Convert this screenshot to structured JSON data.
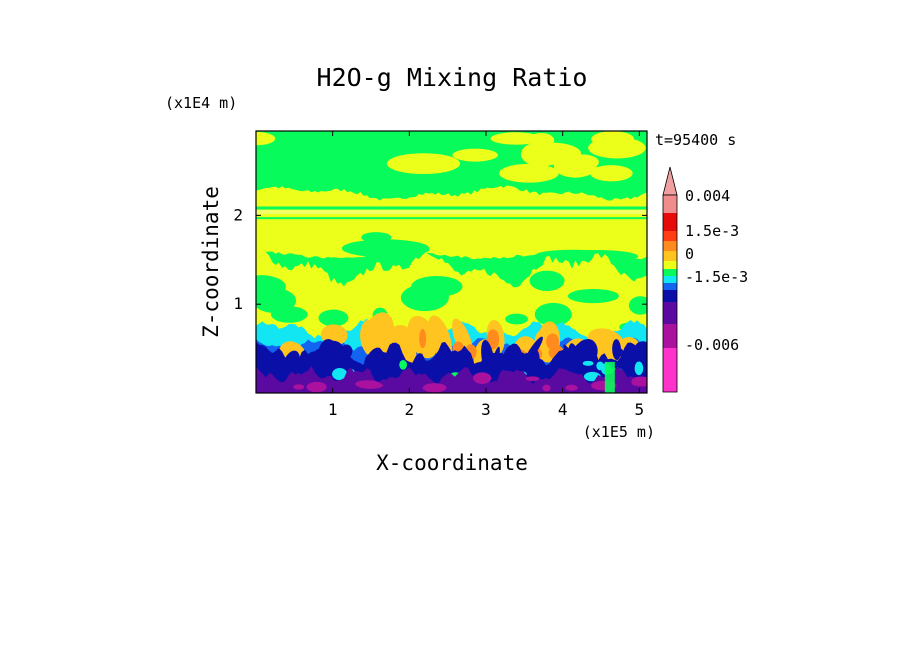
{
  "chart_data": {
    "type": "heatmap",
    "title": "H2O-g Mixing Ratio",
    "xlabel": "X-coordinate",
    "ylabel": "Z-coordinate",
    "x_unit": "(x1E5 m)",
    "y_unit": "(x1E4 m)",
    "time_label": "t=95400 s",
    "xlim": [
      0,
      5.1
    ],
    "ylim": [
      0,
      2.95
    ],
    "x_ticks": [
      1,
      2,
      3,
      4,
      5
    ],
    "y_ticks": [
      1,
      2
    ],
    "x_tick_labels": [
      "1",
      "2",
      "3",
      "4",
      "5"
    ],
    "y_tick_labels": [
      "1",
      "2"
    ],
    "colorbar": {
      "colors": [
        "#ff33cc",
        "#aa119f",
        "#5a0aa0",
        "#0a0fa8",
        "#1464f2",
        "#11e6f2",
        "#07fb5a",
        "#ebff1a",
        "#ffc41f",
        "#ff8a1e",
        "#ff3d12",
        "#e60a0a",
        "#f08c8c",
        "#f0a0a0"
      ],
      "labels": [
        "0.004",
        "1.5e-3",
        "0",
        "-1.5e-3",
        "-0.006"
      ],
      "label_values": [
        0.004,
        0.0015,
        0,
        -0.0015,
        -0.006
      ]
    },
    "background_color": "#07fb5a",
    "layers": [
      {
        "name": "upper-band",
        "z_range": [
          1.55,
          2.3
        ],
        "color": "#ebff1a"
      },
      {
        "name": "mid-layer",
        "z_range": [
          0.55,
          1.55
        ],
        "color": "#ebff1a"
      },
      {
        "name": "cyan-layer",
        "z_range": [
          0.35,
          0.75
        ],
        "color": "#11e6f2"
      },
      {
        "name": "orange-plumes",
        "z_range": [
          0.3,
          0.75
        ],
        "color": "#ffc41f"
      },
      {
        "name": "blue-layer",
        "z_range": [
          0.0,
          0.6
        ],
        "color": "#0a0fa8"
      },
      {
        "name": "purple-base",
        "z_range": [
          0.0,
          0.3
        ],
        "color": "#5a0aa0"
      }
    ]
  }
}
